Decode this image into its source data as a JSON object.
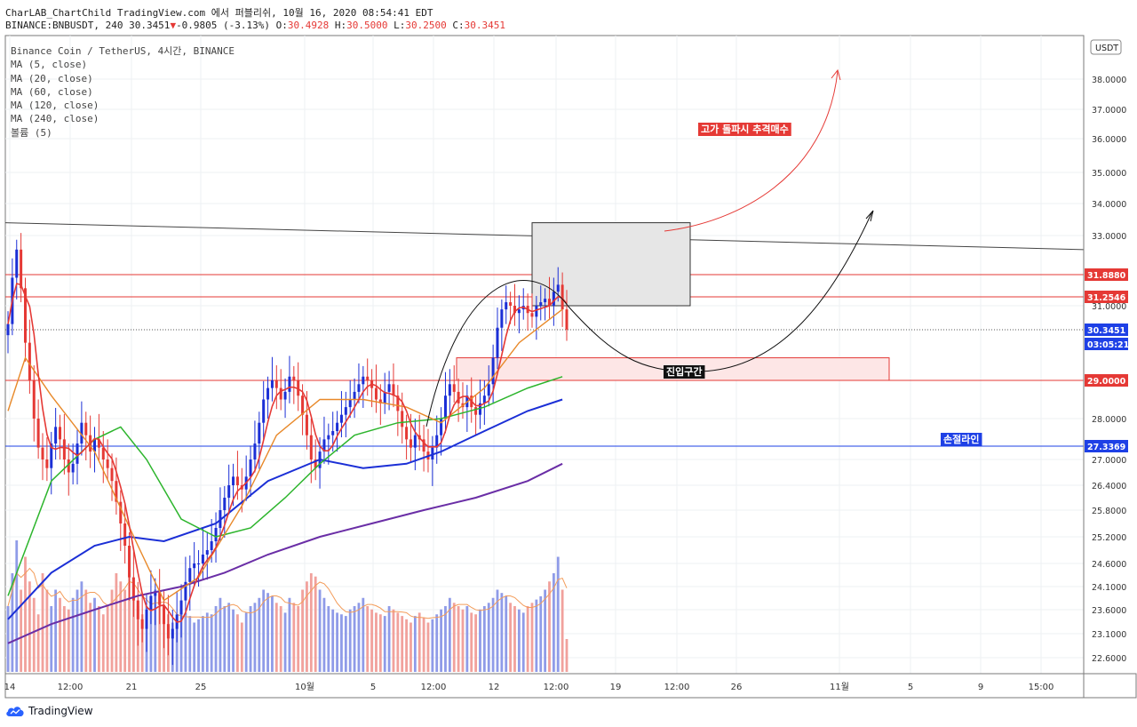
{
  "header": {
    "line1": "CharLAB_ChartChild TradingView.com 에서 퍼블리쉬, 10월 16, 2020 08:54:41 EDT",
    "symbol_prefix": "BINANCE:BNBUSDT, 240 30.3451",
    "change_arrow": "▼",
    "change": "-0.9805 (-3.13%)",
    "o_label": "O:",
    "o_value": "30.4928",
    "h_label": "H:",
    "h_value": "30.5000",
    "l_label": "L:",
    "l_value": "30.2500",
    "c_label": "C:",
    "c_value": "30.3451"
  },
  "legend": [
    "Binance Coin / TetherUS, 4시간, BINANCE",
    "MA (5, close)",
    "MA (20, close)",
    "MA (60, close)",
    "MA (120, close)",
    "MA (240, close)",
    "볼륨 (5)"
  ],
  "footer": {
    "brand": "TradingView"
  },
  "chart_data": {
    "type": "line",
    "currency_label": "USDT",
    "y_ticks": [
      "38.0000",
      "37.0000",
      "36.0000",
      "35.0000",
      "34.0000",
      "33.0000",
      "31.0000",
      "28.0000",
      "27.0000",
      "26.4000",
      "25.8000",
      "25.2000",
      "24.6000",
      "24.1000",
      "23.6000",
      "23.1000",
      "22.6000"
    ],
    "x_ticks": [
      "14",
      "12:00",
      "21",
      "25",
      "10월",
      "5",
      "12:00",
      "12",
      "12:00",
      "19",
      "12:00",
      "26",
      "11월",
      "5",
      "9",
      "15:00"
    ],
    "price_tags": [
      {
        "value": "31.8880",
        "color": "#e53935"
      },
      {
        "value": "31.2546",
        "color": "#e53935"
      },
      {
        "value": "30.3451",
        "color": "#1e40e6"
      },
      {
        "value": "03:05:21",
        "color": "#1e40e6"
      },
      {
        "value": "29.0000",
        "color": "#e53935"
      },
      {
        "value": "27.3369",
        "color": "#1e40e6"
      }
    ],
    "horizontal_lines": [
      {
        "price": 31.888,
        "color": "#e53935"
      },
      {
        "price": 31.2546,
        "color": "#e53935"
      },
      {
        "price": 29.0,
        "color": "#e53935"
      },
      {
        "price": 27.3369,
        "color": "#1e40e6"
      }
    ],
    "trendline": {
      "from": [
        0,
        33.4
      ],
      "to": [
        1,
        32.6
      ]
    },
    "annotations": [
      {
        "text": "고가 돌파시 추격매수",
        "style": "red-box"
      },
      {
        "text": "진입구간",
        "style": "black-box"
      },
      {
        "text": "손절라인",
        "style": "blue-box"
      }
    ],
    "closes": [
      30.5,
      31.8,
      32.6,
      31.5,
      30.0,
      29.0,
      28.0,
      27.3,
      27.0,
      26.8,
      27.4,
      27.8,
      27.5,
      27.0,
      26.7,
      26.9,
      27.4,
      27.9,
      27.6,
      27.2,
      27.5,
      27.3,
      27.0,
      26.8,
      26.5,
      26.0,
      25.5,
      25.0,
      24.3,
      23.8,
      23.4,
      23.2,
      23.6,
      23.9,
      24.0,
      23.7,
      23.3,
      23.0,
      23.2,
      23.5,
      23.8,
      24.2,
      24.5,
      24.6,
      24.6,
      24.8,
      24.9,
      25.1,
      25.4,
      25.8,
      26.1,
      26.4,
      26.6,
      26.4,
      26.3,
      26.6,
      27.0,
      27.4,
      27.9,
      28.5,
      28.8,
      29.0,
      28.8,
      28.5,
      28.7,
      29.1,
      29.0,
      28.6,
      28.1,
      27.6,
      27.0,
      26.8,
      27.2,
      27.5,
      27.6,
      27.7,
      27.9,
      28.1,
      28.3,
      28.5,
      28.7,
      28.9,
      29.1,
      29.0,
      28.8,
      28.5,
      28.4,
      28.7,
      28.9,
      28.6,
      28.2,
      27.8,
      27.5,
      27.3,
      27.6,
      27.5,
      27.2,
      27.0,
      27.3,
      27.6,
      28.0,
      28.6,
      28.9,
      28.7,
      28.4,
      28.3,
      28.6,
      28.3,
      28.1,
      28.4,
      28.6,
      28.9,
      29.6,
      30.4,
      30.9,
      31.1,
      31.0,
      30.8,
      30.9,
      31.0,
      30.8,
      30.7,
      31.0,
      31.1,
      31.2,
      31.0,
      31.4,
      31.6,
      30.9,
      30.35
    ],
    "volume_relative": [
      0.4,
      0.6,
      0.8,
      0.5,
      0.7,
      0.55,
      0.45,
      0.35,
      0.6,
      0.5,
      0.4,
      0.5,
      0.45,
      0.4,
      0.38,
      0.45,
      0.5,
      0.55,
      0.5,
      0.42,
      0.45,
      0.4,
      0.35,
      0.4,
      0.5,
      0.6,
      0.55,
      0.5,
      0.6,
      0.45,
      0.4,
      0.35,
      0.4,
      0.45,
      0.5,
      0.4,
      0.38,
      0.35,
      0.3,
      0.32,
      0.35,
      0.36,
      0.34,
      0.3,
      0.32,
      0.34,
      0.36,
      0.35,
      0.4,
      0.45,
      0.4,
      0.42,
      0.38,
      0.35,
      0.3,
      0.36,
      0.4,
      0.42,
      0.45,
      0.5,
      0.48,
      0.46,
      0.42,
      0.4,
      0.36,
      0.45,
      0.42,
      0.4,
      0.5,
      0.55,
      0.6,
      0.58,
      0.5,
      0.45,
      0.4,
      0.38,
      0.36,
      0.35,
      0.34,
      0.38,
      0.4,
      0.42,
      0.45,
      0.4,
      0.38,
      0.36,
      0.35,
      0.34,
      0.4,
      0.38,
      0.36,
      0.34,
      0.32,
      0.3,
      0.34,
      0.36,
      0.33,
      0.3,
      0.32,
      0.35,
      0.38,
      0.4,
      0.45,
      0.42,
      0.4,
      0.38,
      0.4,
      0.36,
      0.35,
      0.38,
      0.4,
      0.42,
      0.45,
      0.5,
      0.48,
      0.46,
      0.42,
      0.4,
      0.38,
      0.36,
      0.4,
      0.42,
      0.44,
      0.46,
      0.5,
      0.55,
      0.6,
      0.7,
      0.5,
      0.2
    ],
    "moving_averages": [
      {
        "name": "MA (5, close)",
        "period": 5,
        "color": "#e53935",
        "width": 1.6
      },
      {
        "name": "MA (20, close)",
        "period": 20,
        "color": "#e8892a",
        "width": 1.4
      },
      {
        "name": "MA (60, close)",
        "period": 60,
        "color": "#2db52d",
        "width": 1.5
      },
      {
        "name": "MA (120, close)",
        "period": 120,
        "color": "#1b2fd6",
        "width": 2
      },
      {
        "name": "MA (240, close)",
        "period": 240,
        "color": "#6a2ea6",
        "width": 2
      }
    ],
    "ma_anchors": {
      "ma20": [
        [
          0,
          28.2
        ],
        [
          4,
          29.6
        ],
        [
          10,
          28.6
        ],
        [
          20,
          27.2
        ],
        [
          30,
          25.0
        ],
        [
          36,
          23.8
        ],
        [
          44,
          24.3
        ],
        [
          54,
          25.9
        ],
        [
          62,
          27.6
        ],
        [
          72,
          28.5
        ],
        [
          82,
          28.5
        ],
        [
          92,
          28.3
        ],
        [
          100,
          27.9
        ],
        [
          110,
          28.8
        ],
        [
          118,
          30.0
        ],
        [
          128,
          30.9
        ]
      ],
      "ma60": [
        [
          0,
          23.9
        ],
        [
          10,
          26.5
        ],
        [
          20,
          27.5
        ],
        [
          26,
          27.8
        ],
        [
          32,
          27.0
        ],
        [
          40,
          25.6
        ],
        [
          48,
          25.2
        ],
        [
          56,
          25.4
        ],
        [
          64,
          26.1
        ],
        [
          72,
          26.9
        ],
        [
          80,
          27.6
        ],
        [
          90,
          27.9
        ],
        [
          100,
          28.0
        ],
        [
          110,
          28.3
        ],
        [
          120,
          28.8
        ],
        [
          128,
          29.1
        ]
      ],
      "ma120": [
        [
          0,
          23.4
        ],
        [
          10,
          24.4
        ],
        [
          20,
          25.0
        ],
        [
          28,
          25.2
        ],
        [
          36,
          25.1
        ],
        [
          48,
          25.5
        ],
        [
          60,
          26.5
        ],
        [
          72,
          27.0
        ],
        [
          82,
          26.8
        ],
        [
          92,
          26.9
        ],
        [
          100,
          27.2
        ],
        [
          110,
          27.7
        ],
        [
          120,
          28.2
        ],
        [
          128,
          28.5
        ]
      ],
      "ma240": [
        [
          0,
          22.9
        ],
        [
          10,
          23.3
        ],
        [
          20,
          23.6
        ],
        [
          30,
          23.9
        ],
        [
          40,
          24.1
        ],
        [
          50,
          24.4
        ],
        [
          60,
          24.8
        ],
        [
          72,
          25.2
        ],
        [
          84,
          25.5
        ],
        [
          96,
          25.8
        ],
        [
          108,
          26.1
        ],
        [
          120,
          26.5
        ],
        [
          128,
          26.9
        ]
      ]
    }
  }
}
